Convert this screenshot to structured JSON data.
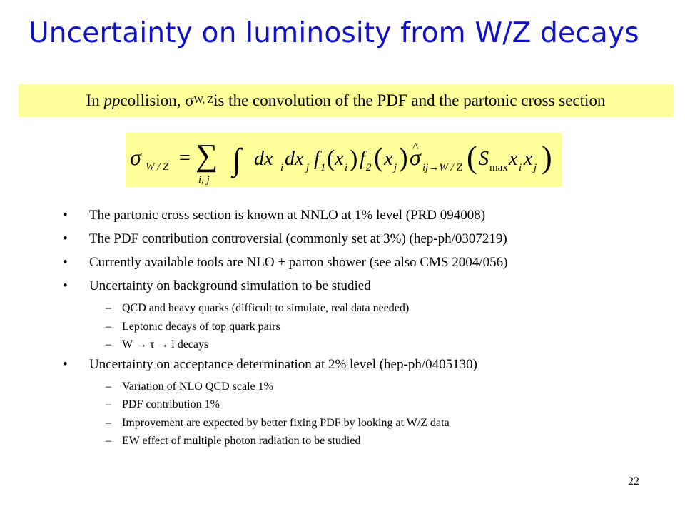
{
  "title": "Uncertainty on luminosity from W/Z decays",
  "banner": {
    "prefix": "In ",
    "pp": "pp",
    "mid": " collision, ",
    "sigma": "σ",
    "sub": "W, Z",
    "suffix": " is the convolution of the PDF and the partonic cross section"
  },
  "formula": {
    "lhs": "σ",
    "lhs_sub": "W / Z",
    "eq": "=",
    "sum": "∑",
    "sum_sub": "i, j",
    "integral": "∫",
    "body": "dxᵢdxⱼ f₁(xᵢ) f₂(xⱼ) σ̂ᵢⱼ→W/Z(Sₘₐₓ xᵢ xⱼ)"
  },
  "bullets": [
    {
      "level": 1,
      "mark": "•",
      "text": "The partonic cross section is known at NNLO at 1% level (PRD 094008)"
    },
    {
      "level": 1,
      "mark": "•",
      "text": "The PDF contribution controversial (commonly set at 3%) (hep-ph/0307219)"
    },
    {
      "level": 1,
      "mark": "•",
      "text": "Currently available tools are NLO + parton shower (see also CMS 2004/056)"
    },
    {
      "level": 1,
      "mark": "•",
      "text": "Uncertainty on background simulation to be studied"
    },
    {
      "level": 2,
      "mark": "–",
      "text": "QCD and heavy quarks (difficult to simulate, real data needed)"
    },
    {
      "level": 2,
      "mark": "–",
      "text": "Leptonic decays of top quark pairs"
    },
    {
      "level": 2,
      "mark": "–",
      "text": "W → τ → l decays"
    },
    {
      "level": 1,
      "mark": "•",
      "text": "Uncertainty on acceptance determination at 2% level (hep-ph/0405130)"
    },
    {
      "level": 2,
      "mark": "–",
      "text": "Variation of NLO QCD scale 1%"
    },
    {
      "level": 2,
      "mark": "–",
      "text": "PDF contribution 1%"
    },
    {
      "level": 2,
      "mark": "–",
      "text": "Improvement are expected by better fixing PDF by looking at W/Z data"
    },
    {
      "level": 2,
      "mark": "–",
      "text": "EW effect of multiple photon radiation to be studied"
    }
  ],
  "page_number": "22",
  "colors": {
    "title": "#1010c8",
    "highlight": "#ffff99"
  }
}
